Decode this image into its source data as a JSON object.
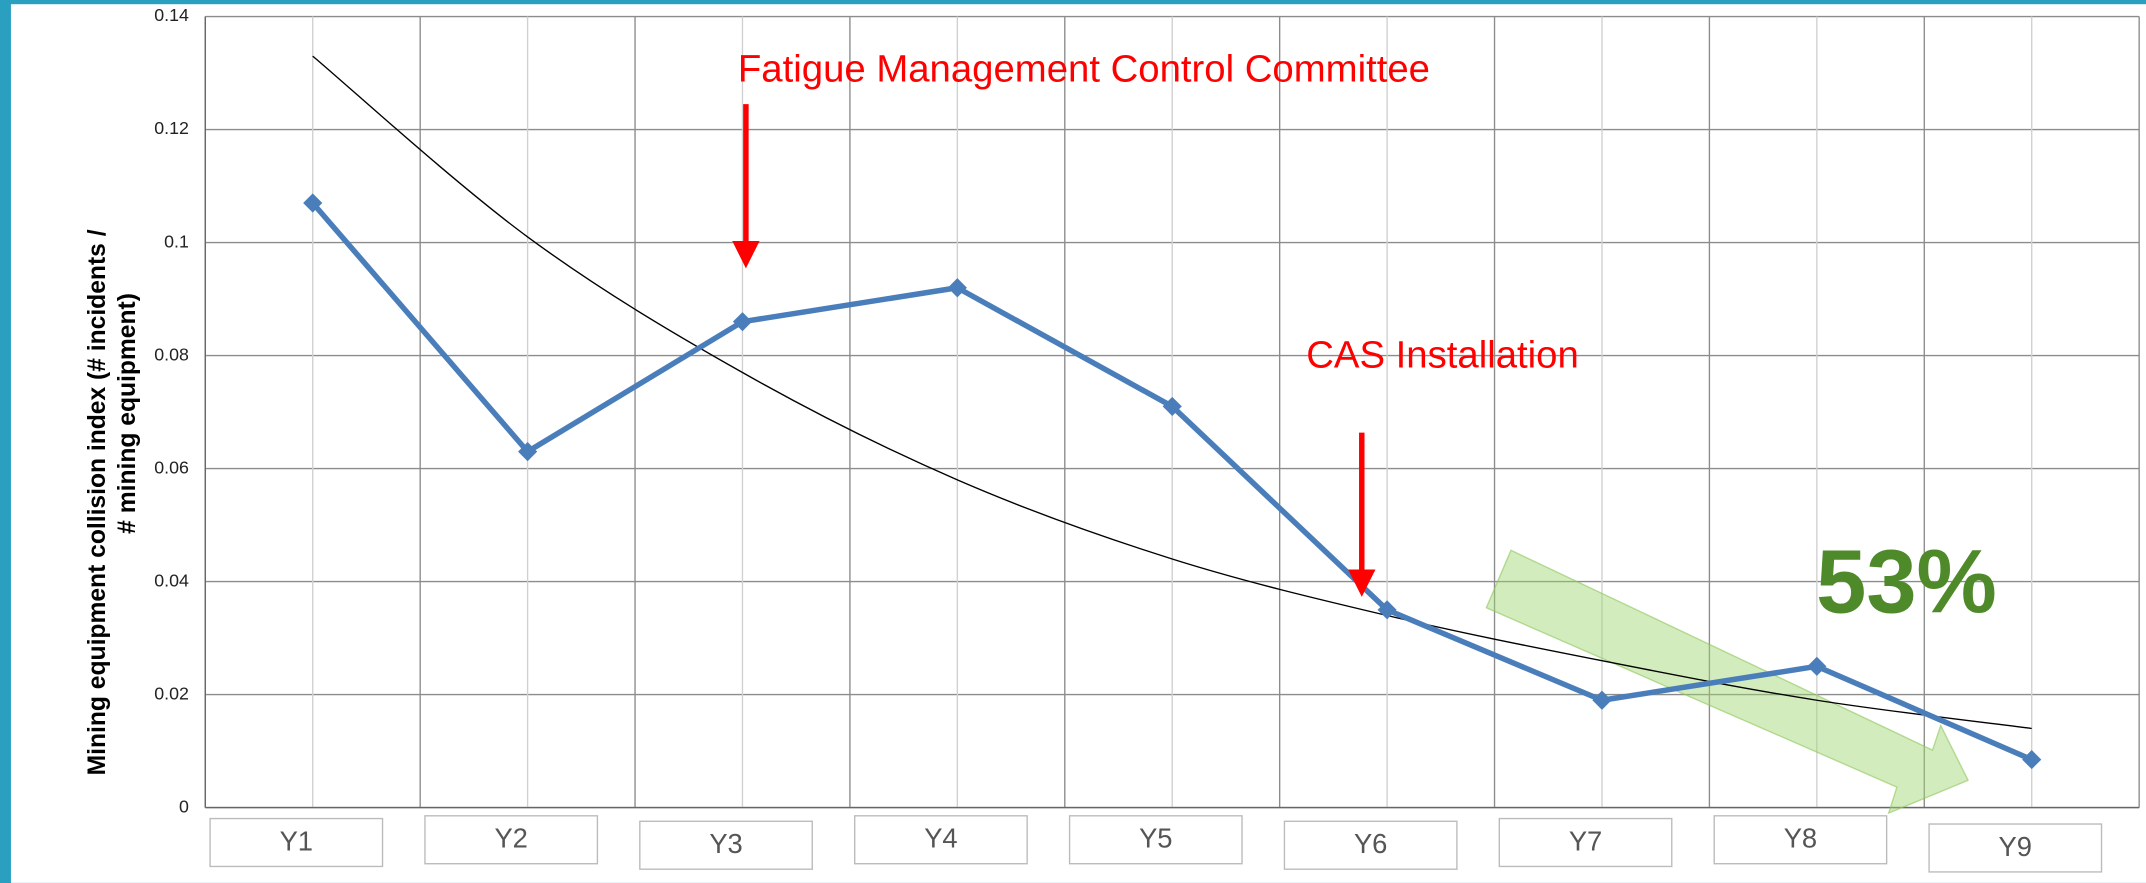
{
  "chart_data": {
    "type": "line",
    "ylabel": [
      "Mining equipment collision index (# incidents /",
      "# mining equipment)"
    ],
    "categories": [
      "Y1",
      "Y2",
      "Y3",
      "Y4",
      "Y5",
      "Y6",
      "Y7",
      "Y8",
      "Y9"
    ],
    "series": [
      {
        "color": "#4a7ebb",
        "values": [
          0.107,
          0.063,
          0.086,
          0.092,
          0.071,
          0.035,
          0.019,
          0.025,
          0.0085
        ]
      }
    ],
    "trendline": {
      "color": "#000000",
      "values": [
        0.133,
        0.101,
        0.077,
        0.058,
        0.044,
        0.034,
        0.026,
        0.019,
        0.014
      ]
    },
    "ylim": [
      0,
      0.14
    ],
    "yticks": [
      0,
      0.02,
      0.04,
      0.06,
      0.08,
      0.1,
      0.12,
      0.14
    ],
    "grid": true,
    "annotations": [
      {
        "text": "Fatigue Management Control Committee",
        "color": "#ff0000"
      },
      {
        "text": "CAS Installation",
        "color": "#ff0000"
      },
      {
        "text": "53%",
        "color": "#4e8a2a"
      }
    ]
  }
}
